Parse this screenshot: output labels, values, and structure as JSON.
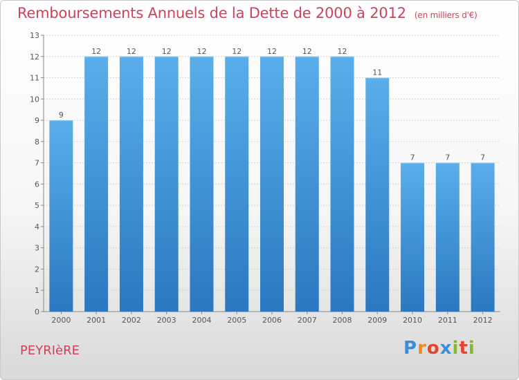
{
  "header": {
    "title": "Remboursements Annuels de la Dette de 2000 à 2012",
    "subtitle": "(en milliers d'€)"
  },
  "footer": {
    "town": "PEYRIèRE",
    "logo_letters": [
      "P",
      "r",
      "o",
      "x",
      "i",
      "t",
      "i"
    ],
    "logo_colors": [
      "#3a8fd8",
      "#f08a1e",
      "#e4452d",
      "#3a8fd8",
      "#84b92f",
      "#e4452d",
      "#84b92f"
    ]
  },
  "chart_data": {
    "type": "bar",
    "categories": [
      "2000",
      "2001",
      "2002",
      "2003",
      "2004",
      "2005",
      "2006",
      "2007",
      "2008",
      "2009",
      "2010",
      "2011",
      "2012"
    ],
    "values": [
      9,
      12,
      12,
      12,
      12,
      12,
      12,
      12,
      12,
      11,
      7,
      7,
      7
    ],
    "title": "Remboursements Annuels de la Dette de 2000 à 2012",
    "subtitle": "(en milliers d'€)",
    "ylim": [
      0,
      13
    ],
    "yticks": [
      0,
      1,
      2,
      3,
      4,
      5,
      6,
      7,
      8,
      9,
      10,
      11,
      12,
      13
    ],
    "grid": true,
    "bar_color": "#4a9fe0",
    "label_color": "#555555"
  }
}
